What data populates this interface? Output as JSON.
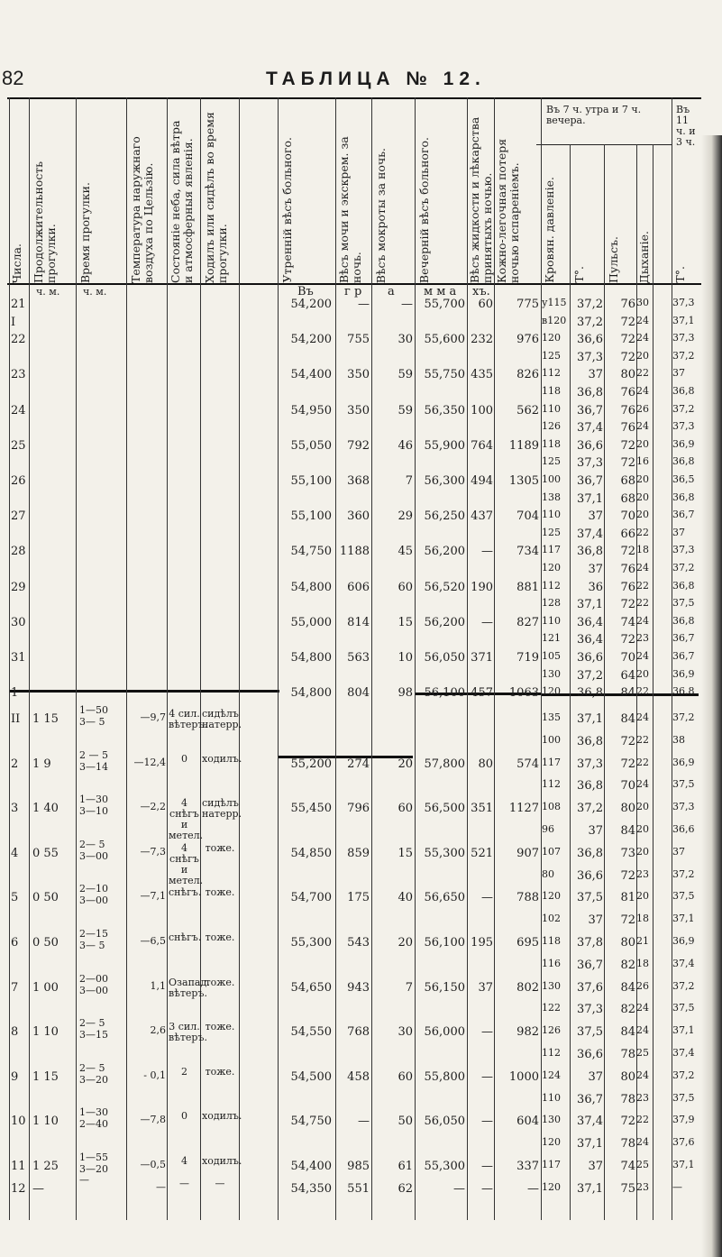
{
  "page_number": "82",
  "title": "ТАБЛИЦА № 12.",
  "headers": {
    "numbers": "Числа.",
    "walk_duration": "Продолжительность прогулки.",
    "walk_time": "Время прогулки.",
    "outdoor_temp": "Температура наружнаго воздуха по Цельзію.",
    "sky_state": "Состояніе неба, сила вѣтра и атмосферныя явленія.",
    "walked_or_sat": "Ходилъ или сидѣлъ во время прогулки.",
    "morning_weight": "Утренній вѣсъ больного.",
    "urine_weight": "Вѣсъ мочи и экскрем. за ночь.",
    "sputum_weight": "Вѣсъ мокроты за ночь.",
    "evening_weight": "Вечерній вѣсъ больного.",
    "fluids_weight": "Вѣсъ жидкости и лѣкарства принятыхъ ночью.",
    "skin_loss": "Кожно-легочная потеря ночью испареніемъ.",
    "group_7": "Въ 7 ч. утра и 7 ч. вечера.",
    "group_11": "Въ 11 ч. и 3 ч.",
    "blood_pressure": "Кровян. давленіе.",
    "t_col": "Т°.",
    "pulse": "Пульсъ.",
    "breathing": "Дыханіе.",
    "t_col2": "Т°."
  },
  "subheader": {
    "ch_m1": "ч. м.",
    "ch_m2": "ч. м.",
    "v": "Въ",
    "gr": "г р",
    "a": "а",
    "mma": "м м а",
    "kh": "хъ."
  },
  "rows_a": [
    {
      "d": "21",
      "mw": "54,200",
      "ur": "—",
      "sp": "—",
      "ew": "55,700",
      "fl": "60",
      "sk": "775",
      "bp": "у115",
      "t": "37,2",
      "p": "76",
      "b": "30",
      "t2": "37,3"
    },
    {
      "d": "I",
      "mw": "",
      "ur": "",
      "sp": "",
      "ew": "",
      "fl": "",
      "sk": "",
      "bp": "в120",
      "t": "37,2",
      "p": "72",
      "b": "24",
      "t2": "37,1"
    },
    {
      "d": "22",
      "mw": "54,200",
      "ur": "755",
      "sp": "30",
      "ew": "55,600",
      "fl": "232",
      "sk": "976",
      "bp": "120",
      "t": "36,6",
      "p": "72",
      "b": "24",
      "t2": "37,3"
    },
    {
      "d": "",
      "mw": "",
      "ur": "",
      "sp": "",
      "ew": "",
      "fl": "",
      "sk": "",
      "bp": "125",
      "t": "37,3",
      "p": "72",
      "b": "20",
      "t2": "37,2"
    },
    {
      "d": "23",
      "mw": "54,400",
      "ur": "350",
      "sp": "59",
      "ew": "55,750",
      "fl": "435",
      "sk": "826",
      "bp": "112",
      "t": "37",
      "p": "80",
      "b": "22",
      "t2": "37"
    },
    {
      "d": "",
      "mw": "",
      "ur": "",
      "sp": "",
      "ew": "",
      "fl": "",
      "sk": "",
      "bp": "118",
      "t": "36,8",
      "p": "76",
      "b": "24",
      "t2": "36,8"
    },
    {
      "d": "24",
      "mw": "54,950",
      "ur": "350",
      "sp": "59",
      "ew": "56,350",
      "fl": "100",
      "sk": "562",
      "bp": "110",
      "t": "36,7",
      "p": "76",
      "b": "26",
      "t2": "37,2"
    },
    {
      "d": "",
      "mw": "",
      "ur": "",
      "sp": "",
      "ew": "",
      "fl": "",
      "sk": "",
      "bp": "126",
      "t": "37,4",
      "p": "76",
      "b": "24",
      "t2": "37,3"
    },
    {
      "d": "25",
      "mw": "55,050",
      "ur": "792",
      "sp": "46",
      "ew": "55,900",
      "fl": "764",
      "sk": "1189",
      "bp": "118",
      "t": "36,6",
      "p": "72",
      "b": "20",
      "t2": "36,9"
    },
    {
      "d": "",
      "mw": "",
      "ur": "",
      "sp": "",
      "ew": "",
      "fl": "",
      "sk": "",
      "bp": "125",
      "t": "37,3",
      "p": "72",
      "b": "16",
      "t2": "36,8"
    },
    {
      "d": "26",
      "mw": "55,100",
      "ur": "368",
      "sp": "7",
      "ew": "56,300",
      "fl": "494",
      "sk": "1305",
      "bp": "100",
      "t": "36,7",
      "p": "68",
      "b": "20",
      "t2": "36,5"
    },
    {
      "d": "",
      "mw": "",
      "ur": "",
      "sp": "",
      "ew": "",
      "fl": "",
      "sk": "",
      "bp": "138",
      "t": "37,1",
      "p": "68",
      "b": "20",
      "t2": "36,8"
    },
    {
      "d": "27",
      "mw": "55,100",
      "ur": "360",
      "sp": "29",
      "ew": "56,250",
      "fl": "437",
      "sk": "704",
      "bp": "110",
      "t": "37",
      "p": "70",
      "b": "20",
      "t2": "36,7"
    },
    {
      "d": "",
      "mw": "",
      "ur": "",
      "sp": "",
      "ew": "",
      "fl": "",
      "sk": "",
      "bp": "125",
      "t": "37,4",
      "p": "66",
      "b": "22",
      "t2": "37"
    },
    {
      "d": "28",
      "mw": "54,750",
      "ur": "1188",
      "sp": "45",
      "ew": "56,200",
      "fl": "—",
      "sk": "734",
      "bp": "117",
      "t": "36,8",
      "p": "72",
      "b": "18",
      "t2": "37,3"
    },
    {
      "d": "",
      "mw": "",
      "ur": "",
      "sp": "",
      "ew": "",
      "fl": "",
      "sk": "",
      "bp": "120",
      "t": "37",
      "p": "76",
      "b": "24",
      "t2": "37,2"
    },
    {
      "d": "29",
      "mw": "54,800",
      "ur": "606",
      "sp": "60",
      "ew": "56,520",
      "fl": "190",
      "sk": "881",
      "bp": "112",
      "t": "36",
      "p": "76",
      "b": "22",
      "t2": "36,8"
    },
    {
      "d": "",
      "mw": "",
      "ur": "",
      "sp": "",
      "ew": "",
      "fl": "",
      "sk": "",
      "bp": "128",
      "t": "37,1",
      "p": "72",
      "b": "22",
      "t2": "37,5"
    },
    {
      "d": "30",
      "mw": "55,000",
      "ur": "814",
      "sp": "15",
      "ew": "56,200",
      "fl": "—",
      "sk": "827",
      "bp": "110",
      "t": "36,4",
      "p": "74",
      "b": "24",
      "t2": "36,8"
    },
    {
      "d": "",
      "mw": "",
      "ur": "",
      "sp": "",
      "ew": "",
      "fl": "",
      "sk": "",
      "bp": "121",
      "t": "36,4",
      "p": "72",
      "b": "23",
      "t2": "36,7"
    },
    {
      "d": "31",
      "mw": "54,800",
      "ur": "563",
      "sp": "10",
      "ew": "56,050",
      "fl": "371",
      "sk": "719",
      "bp": "105",
      "t": "36,6",
      "p": "70",
      "b": "24",
      "t2": "36,7"
    },
    {
      "d": "",
      "mw": "",
      "ur": "",
      "sp": "",
      "ew": "",
      "fl": "",
      "sk": "",
      "bp": "130",
      "t": "37,2",
      "p": "64",
      "b": "20",
      "t2": "36,9"
    },
    {
      "d": "1",
      "mw": "54,800",
      "ur": "804",
      "sp": "98",
      "ew": "56,100",
      "fl": "457",
      "sk": "1063",
      "bp": "120",
      "t": "36,8",
      "p": "84",
      "b": "22",
      "t2": "36,8"
    }
  ],
  "rows_b": [
    {
      "d": "II",
      "dur": "1 15",
      "time": "1—50",
      "time2": "3— 5",
      "temp": "—9,7",
      "sky": "4 сил. вѣтеръ.",
      "w": "сидѣлъ натерр.",
      "mw": "",
      "ur": "",
      "sp": "",
      "ew": "",
      "fl": "",
      "sk": "",
      "bp": "135",
      "t": "37,1",
      "p": "84",
      "b": "24",
      "t2": "37,2"
    },
    {
      "d": "",
      "dur": "",
      "time": "",
      "time2": "",
      "temp": "",
      "sky": "",
      "w": "",
      "mw": "",
      "ur": "",
      "sp": "",
      "ew": "",
      "fl": "",
      "sk": "",
      "bp": "100",
      "t": "36,8",
      "p": "72",
      "b": "22",
      "t2": "38"
    },
    {
      "d": "2",
      "dur": "1 9",
      "time": "2 — 5",
      "time2": "3—14",
      "temp": "—12,4",
      "sky": "0",
      "w": "ходилъ.",
      "mw": "55,200",
      "ur": "274",
      "sp": "20",
      "ew": "57,800",
      "fl": "80",
      "sk": "574",
      "bp": "117",
      "t": "37,3",
      "p": "72",
      "b": "22",
      "t2": "36,9"
    },
    {
      "d": "",
      "dur": "",
      "time": "",
      "time2": "",
      "temp": "",
      "sky": "",
      "w": "",
      "mw": "",
      "ur": "",
      "sp": "",
      "ew": "",
      "fl": "",
      "sk": "",
      "bp": "112",
      "t": "36,8",
      "p": "70",
      "b": "24",
      "t2": "37,5"
    },
    {
      "d": "3",
      "dur": "1 40",
      "time": "1—30",
      "time2": "3—10",
      "temp": "—2,2",
      "sky": "4 снѣгъ и метел.",
      "w": "сидѣлъ натерр.",
      "mw": "55,450",
      "ur": "796",
      "sp": "60",
      "ew": "56,500",
      "fl": "351",
      "sk": "1127",
      "bp": "108",
      "t": "37,2",
      "p": "80",
      "b": "20",
      "t2": "37,3"
    },
    {
      "d": "",
      "dur": "",
      "time": "",
      "time2": "",
      "temp": "",
      "sky": "",
      "w": "",
      "mw": "",
      "ur": "",
      "sp": "",
      "ew": "",
      "fl": "",
      "sk": "",
      "bp": "96",
      "t": "37",
      "p": "84",
      "b": "20",
      "t2": "36,6"
    },
    {
      "d": "4",
      "dur": "0 55",
      "time": "2— 5",
      "time2": "3—00",
      "temp": "—7,3",
      "sky": "4 снѣгъ и метел.",
      "w": "тоже.",
      "mw": "54,850",
      "ur": "859",
      "sp": "15",
      "ew": "55,300",
      "fl": "521",
      "sk": "907",
      "bp": "107",
      "t": "36,8",
      "p": "73",
      "b": "20",
      "t2": "37"
    },
    {
      "d": "",
      "dur": "",
      "time": "",
      "time2": "",
      "temp": "",
      "sky": "",
      "w": "",
      "mw": "",
      "ur": "",
      "sp": "",
      "ew": "",
      "fl": "",
      "sk": "",
      "bp": "80",
      "t": "36,6",
      "p": "72",
      "b": "23",
      "t2": "37,2"
    },
    {
      "d": "5",
      "dur": "0 50",
      "time": "2—10",
      "time2": "3—00",
      "temp": "—7,1",
      "sky": "снѣгъ.",
      "w": "тоже.",
      "mw": "54,700",
      "ur": "175",
      "sp": "40",
      "ew": "56,650",
      "fl": "—",
      "sk": "788",
      "bp": "120",
      "t": "37,5",
      "p": "81",
      "b": "20",
      "t2": "37,5"
    },
    {
      "d": "",
      "dur": "",
      "time": "",
      "time2": "",
      "temp": "",
      "sky": "",
      "w": "",
      "mw": "",
      "ur": "",
      "sp": "",
      "ew": "",
      "fl": "",
      "sk": "",
      "bp": "102",
      "t": "37",
      "p": "72",
      "b": "18",
      "t2": "37,1"
    },
    {
      "d": "6",
      "dur": "0 50",
      "time": "2—15",
      "time2": "3— 5",
      "temp": "—6,5",
      "sky": "снѣгъ.",
      "w": "тоже.",
      "mw": "55,300",
      "ur": "543",
      "sp": "20",
      "ew": "56,100",
      "fl": "195",
      "sk": "695",
      "bp": "118",
      "t": "37,8",
      "p": "80",
      "b": "21",
      "t2": "36,9"
    },
    {
      "d": "",
      "dur": "",
      "time": "",
      "time2": "",
      "temp": "",
      "sky": "",
      "w": "",
      "mw": "",
      "ur": "",
      "sp": "",
      "ew": "",
      "fl": "",
      "sk": "",
      "bp": "116",
      "t": "36,7",
      "p": "82",
      "b": "18",
      "t2": "37,4"
    },
    {
      "d": "7",
      "dur": "1 00",
      "time": "2—00",
      "time2": "3—00",
      "temp": "1,1",
      "sky": "Озапад. вѣтеръ.",
      "w": "тоже.",
      "mw": "54,650",
      "ur": "943",
      "sp": "7",
      "ew": "56,150",
      "fl": "37",
      "sk": "802",
      "bp": "130",
      "t": "37,6",
      "p": "84",
      "b": "26",
      "t2": "37,2"
    },
    {
      "d": "",
      "dur": "",
      "time": "",
      "time2": "",
      "temp": "",
      "sky": "",
      "w": "",
      "mw": "",
      "ur": "",
      "sp": "",
      "ew": "",
      "fl": "",
      "sk": "",
      "bp": "122",
      "t": "37,3",
      "p": "82",
      "b": "24",
      "t2": "37,5"
    },
    {
      "d": "8",
      "dur": "1 10",
      "time": "2— 5",
      "time2": "3—15",
      "temp": "2,6",
      "sky": "3 сил. вѣтеръ.",
      "w": "тоже.",
      "mw": "54,550",
      "ur": "768",
      "sp": "30",
      "ew": "56,000",
      "fl": "—",
      "sk": "982",
      "bp": "126",
      "t": "37,5",
      "p": "84",
      "b": "24",
      "t2": "37,1"
    },
    {
      "d": "",
      "dur": "",
      "time": "",
      "time2": "",
      "temp": "",
      "sky": "",
      "w": "",
      "mw": "",
      "ur": "",
      "sp": "",
      "ew": "",
      "fl": "",
      "sk": "",
      "bp": "112",
      "t": "36,6",
      "p": "78",
      "b": "25",
      "t2": "37,4"
    },
    {
      "d": "9",
      "dur": "1 15",
      "time": "2— 5",
      "time2": "3—20",
      "temp": "- 0,1",
      "sky": "2",
      "w": "тоже.",
      "mw": "54,500",
      "ur": "458",
      "sp": "60",
      "ew": "55,800",
      "fl": "—",
      "sk": "1000",
      "bp": "124",
      "t": "37",
      "p": "80",
      "b": "24",
      "t2": "37,2"
    },
    {
      "d": "",
      "dur": "",
      "time": "",
      "time2": "",
      "temp": "",
      "sky": "",
      "w": "",
      "mw": "",
      "ur": "",
      "sp": "",
      "ew": "",
      "fl": "",
      "sk": "",
      "bp": "110",
      "t": "36,7",
      "p": "78",
      "b": "23",
      "t2": "37,5"
    },
    {
      "d": "10",
      "dur": "1 10",
      "time": "1—30",
      "time2": "2—40",
      "temp": "—7,8",
      "sky": "0",
      "w": "ходилъ.",
      "mw": "54,750",
      "ur": "—",
      "sp": "50",
      "ew": "56,050",
      "fl": "—",
      "sk": "604",
      "bp": "130",
      "t": "37,4",
      "p": "72",
      "b": "22",
      "t2": "37,9"
    },
    {
      "d": "",
      "dur": "",
      "time": "",
      "time2": "",
      "temp": "",
      "sky": "",
      "w": "",
      "mw": "",
      "ur": "",
      "sp": "",
      "ew": "",
      "fl": "",
      "sk": "",
      "bp": "120",
      "t": "37,1",
      "p": "78",
      "b": "24",
      "t2": "37,6"
    },
    {
      "d": "11",
      "dur": "1 25",
      "time": "1—55",
      "time2": "3—20",
      "temp": "—0,5",
      "sky": "4",
      "w": "ходилъ.",
      "mw": "54,400",
      "ur": "985",
      "sp": "61",
      "ew": "55,300",
      "fl": "—",
      "sk": "337",
      "bp": "117",
      "t": "37",
      "p": "74",
      "b": "25",
      "t2": "37,1"
    },
    {
      "d": "12",
      "dur": "—",
      "time": "—",
      "time2": "",
      "temp": "—",
      "sky": "—",
      "w": "—",
      "mw": "54,350",
      "ur": "551",
      "sp": "62",
      "ew": "—",
      "fl": "—",
      "sk": "—",
      "bp": "120",
      "t": "37,1",
      "p": "75",
      "b": "23",
      "t2": "—"
    }
  ]
}
